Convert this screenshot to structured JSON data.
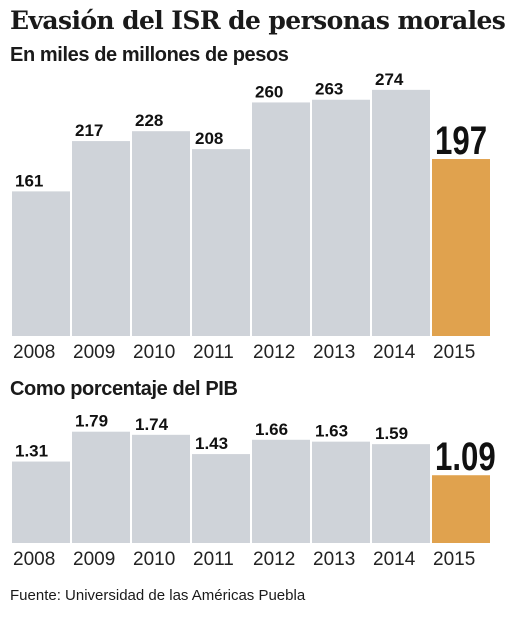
{
  "title": "Evasión del ISR de personas morales",
  "source": "Fuente: Universidad de las Américas Puebla",
  "colors": {
    "bar": "#cfd3d9",
    "highlight": "#e0a24e"
  },
  "chart_data": [
    {
      "type": "bar",
      "title": "En miles de millones de pesos",
      "categories": [
        "2008",
        "2009",
        "2010",
        "2011",
        "2012",
        "2013",
        "2014",
        "2015"
      ],
      "values": [
        161,
        217,
        228,
        208,
        260,
        263,
        274,
        197
      ],
      "labels": [
        "161",
        "217",
        "228",
        "208",
        "260",
        "263",
        "274",
        "197"
      ],
      "highlight_index": 7,
      "ylim": [
        0,
        295
      ]
    },
    {
      "type": "bar",
      "title": "Como porcentaje del PIB",
      "categories": [
        "2008",
        "2009",
        "2010",
        "2011",
        "2012",
        "2013",
        "2014",
        "2015"
      ],
      "values": [
        1.31,
        1.79,
        1.74,
        1.43,
        1.66,
        1.63,
        1.59,
        1.09
      ],
      "labels": [
        "1.31",
        "1.79",
        "1.74",
        "1.43",
        "1.66",
        "1.63",
        "1.59",
        "1.09"
      ],
      "highlight_index": 7,
      "ylim": [
        0,
        1.93
      ]
    }
  ]
}
